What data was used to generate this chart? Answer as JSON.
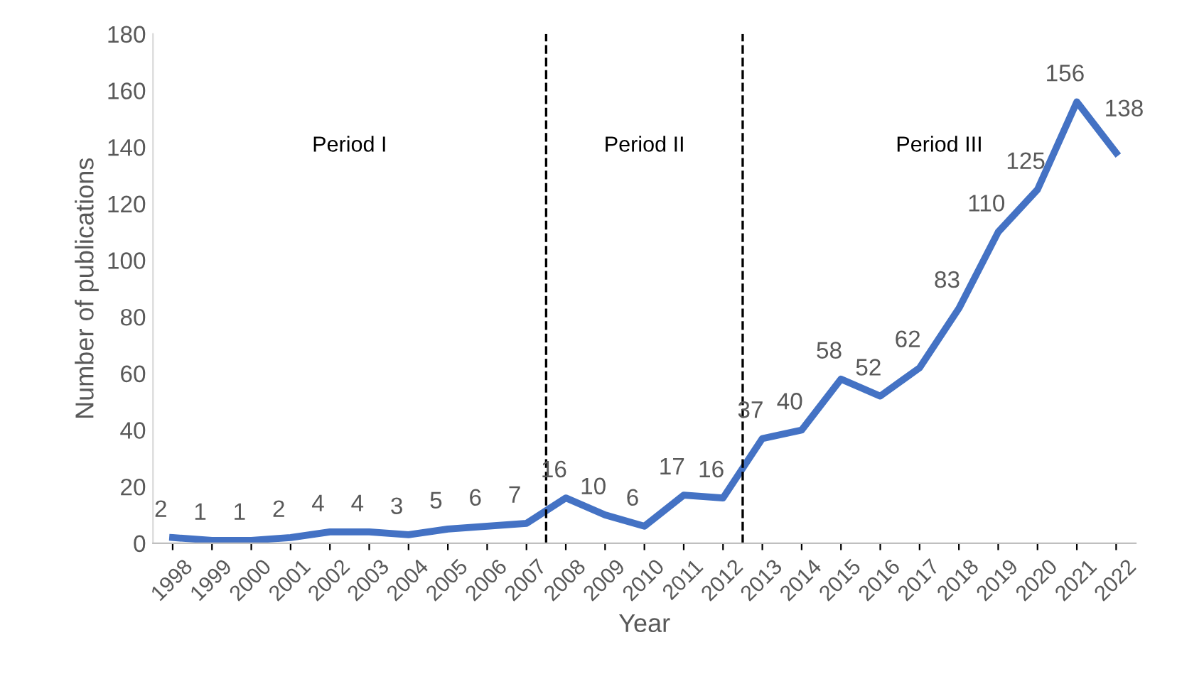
{
  "chart_data": {
    "type": "line",
    "xlabel": "Year",
    "ylabel": "Number of publications",
    "x": [
      1998,
      1999,
      2000,
      2001,
      2002,
      2003,
      2004,
      2005,
      2006,
      2007,
      2008,
      2009,
      2010,
      2011,
      2012,
      2013,
      2014,
      2015,
      2016,
      2017,
      2018,
      2019,
      2020,
      2021,
      2022
    ],
    "series": [
      {
        "color": "#4472c4",
        "values": [
          2,
          1,
          1,
          2,
          4,
          4,
          3,
          5,
          6,
          7,
          16,
          10,
          6,
          17,
          16,
          37,
          40,
          58,
          52,
          62,
          83,
          110,
          125,
          156,
          138
        ]
      }
    ],
    "data_labels": true,
    "xlim": [
      1997.5,
      2022.5
    ],
    "xticks": [
      1998,
      1999,
      2000,
      2001,
      2002,
      2003,
      2004,
      2005,
      2006,
      2007,
      2008,
      2009,
      2010,
      2011,
      2012,
      2013,
      2014,
      2015,
      2016,
      2017,
      2018,
      2019,
      2020,
      2021,
      2022
    ],
    "ylim": [
      0,
      180
    ],
    "yticks": [
      0,
      20,
      40,
      60,
      80,
      100,
      120,
      140,
      160,
      180
    ],
    "ref_lines": [
      {
        "axis": "x",
        "value": 2007.5,
        "color": "#000000",
        "line_style": "dashed"
      },
      {
        "axis": "x",
        "value": 2012.5,
        "color": "#000000",
        "line_style": "dashed"
      }
    ],
    "annotations": [
      "Period I",
      "Period II",
      "Period III"
    ],
    "grid": false,
    "marker": "none",
    "line_style": "solid"
  }
}
